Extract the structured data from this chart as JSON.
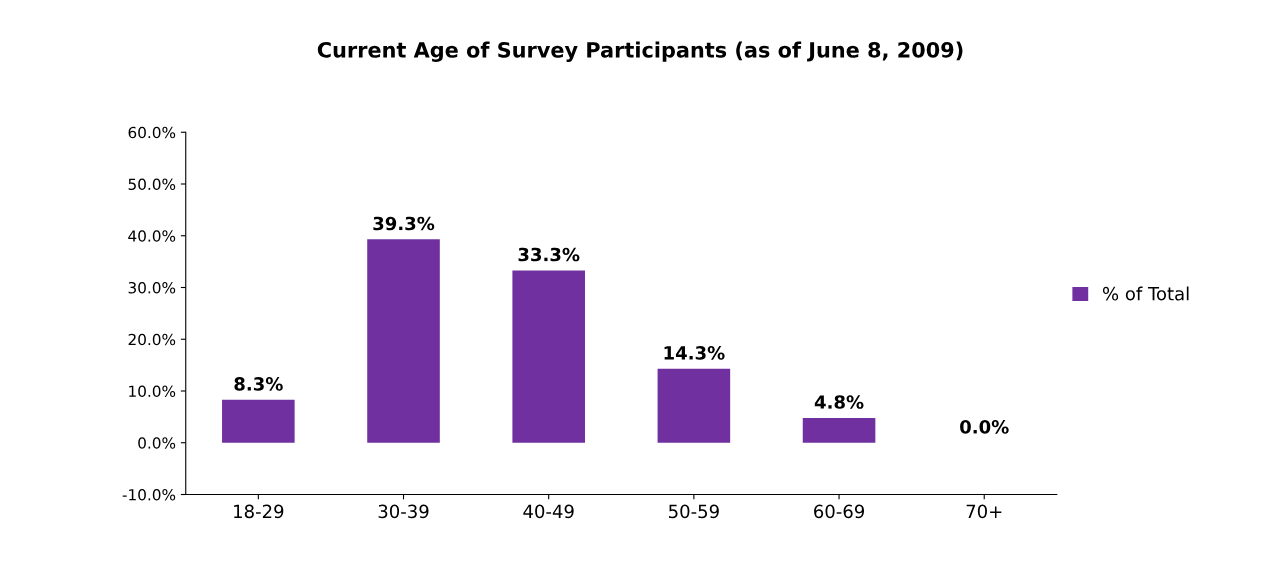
{
  "chart_data": {
    "type": "bar",
    "title": "Current Age of Survey Participants (as of June 8, 2009)",
    "categories": [
      "18-29",
      "30-39",
      "40-49",
      "50-59",
      "60-69",
      "70+"
    ],
    "series": [
      {
        "name": "% of Total",
        "color": "#7030a0",
        "values": [
          8.3,
          39.3,
          33.3,
          14.3,
          4.8,
          0.0
        ],
        "value_labels": [
          "8.3%",
          "39.3%",
          "33.3%",
          "14.3%",
          "4.8%",
          "0.0%"
        ]
      }
    ],
    "ylim": [
      -10,
      60
    ],
    "yticks": [
      {
        "value": -10,
        "label": "-10.0%"
      },
      {
        "value": 0,
        "label": "0.0%"
      },
      {
        "value": 10,
        "label": "10.0%"
      },
      {
        "value": 20,
        "label": "20.0%"
      },
      {
        "value": 30,
        "label": "30.0%"
      },
      {
        "value": 40,
        "label": "40.0%"
      },
      {
        "value": 50,
        "label": "50.0%"
      },
      {
        "value": 60,
        "label": "60.0%"
      }
    ],
    "legend": "right",
    "grid": false
  }
}
